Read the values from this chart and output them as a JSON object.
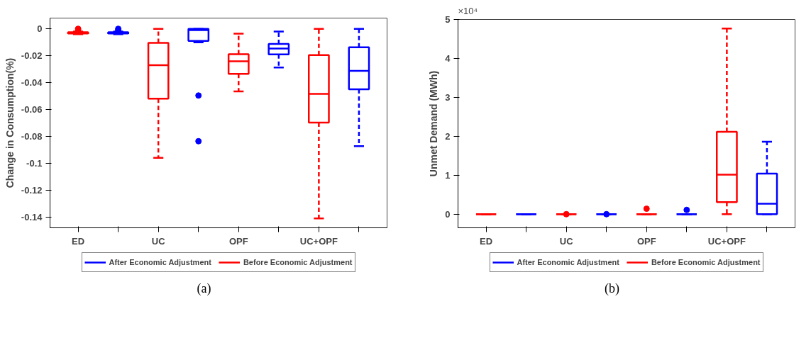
{
  "chart_data": [
    {
      "type": "box",
      "ylabel": "Change in Consumption(%)",
      "categories": [
        "ED",
        null,
        "UC",
        null,
        "OPF",
        null,
        "UC+OPF",
        null
      ],
      "ylim": [
        -0.148,
        0.008
      ],
      "yticks": [
        0,
        -0.02,
        -0.04,
        -0.06,
        -0.08,
        -0.1,
        -0.12,
        -0.14
      ],
      "grid": false,
      "legend": "bottom",
      "marker": "circle",
      "annotations": [
        "(a)"
      ],
      "series": [
        {
          "name": "After Economic Adjustment",
          "color": "#0000ff",
          "boxes": [
            null,
            {
              "low": -0.004,
              "q1": -0.0035,
              "median": -0.003,
              "q3": -0.0025,
              "high": -0.002,
              "outliers": [
                0,
                -0.001
              ]
            },
            null,
            {
              "low": -0.01,
              "q1": -0.009,
              "median": -0.001,
              "q3": 0,
              "high": 0,
              "outliers": [
                -0.0496,
                -0.0836
              ]
            },
            null,
            {
              "low": -0.0288,
              "q1": -0.019,
              "median": -0.0146,
              "q3": -0.0113,
              "high": -0.002
            },
            null,
            {
              "low": -0.0873,
              "q1": -0.045,
              "median": -0.0312,
              "q3": -0.0138,
              "high": 0
            }
          ]
        },
        {
          "name": "Before Economic Adjustment",
          "color": "#ff0000",
          "boxes": [
            {
              "low": -0.004,
              "q1": -0.0035,
              "median": -0.003,
              "q3": -0.0025,
              "high": -0.002,
              "outliers": [
                0,
                -0.001
              ]
            },
            null,
            {
              "low": -0.096,
              "q1": -0.052,
              "median": -0.027,
              "q3": -0.0105,
              "high": 0
            },
            null,
            {
              "low": -0.0466,
              "q1": -0.0335,
              "median": -0.0241,
              "q3": -0.0189,
              "high": -0.0036
            },
            null,
            {
              "low": -0.141,
              "q1": -0.0697,
              "median": -0.0484,
              "q3": -0.0195,
              "high": 0
            },
            null
          ]
        }
      ]
    },
    {
      "type": "box",
      "ylabel": "Unmet Demand (MWh)",
      "categories": [
        "ED",
        null,
        "UC",
        null,
        "OPF",
        null,
        "UC+OPF",
        null
      ],
      "ylim": [
        -0.35,
        5
      ],
      "yticks": [
        0,
        1,
        2,
        3,
        4,
        5
      ],
      "grid": false,
      "legend": "bottom",
      "marker": "circle",
      "annotations": [
        "×10⁴",
        "(b)"
      ],
      "series": [
        {
          "name": "After Economic Adjustment",
          "color": "#0000ff",
          "boxes": [
            null,
            {
              "low": 0,
              "q1": 0,
              "median": 0,
              "q3": 0,
              "high": 0
            },
            null,
            {
              "low": 0,
              "q1": 0,
              "median": 0,
              "q3": 0,
              "high": 0,
              "outliers": [
                0
              ]
            },
            null,
            {
              "low": 0,
              "q1": 0,
              "median": 0,
              "q3": 0,
              "high": 0,
              "outliers": [
                0.11
              ]
            },
            null,
            {
              "low": 0,
              "q1": 0,
              "median": 0.27,
              "q3": 1.04,
              "high": 1.86
            }
          ]
        },
        {
          "name": "Before Economic Adjustment",
          "color": "#ff0000",
          "boxes": [
            {
              "low": 0,
              "q1": 0,
              "median": 0,
              "q3": 0,
              "high": 0
            },
            null,
            {
              "low": 0,
              "q1": 0,
              "median": 0,
              "q3": 0,
              "high": 0,
              "outliers": [
                0
              ]
            },
            null,
            {
              "low": 0,
              "q1": 0,
              "median": 0,
              "q3": 0,
              "high": 0,
              "outliers": [
                0.14
              ]
            },
            null,
            {
              "low": 0,
              "q1": 0.31,
              "median": 1.015,
              "q3": 2.115,
              "high": 4.77
            },
            null
          ]
        }
      ]
    }
  ]
}
